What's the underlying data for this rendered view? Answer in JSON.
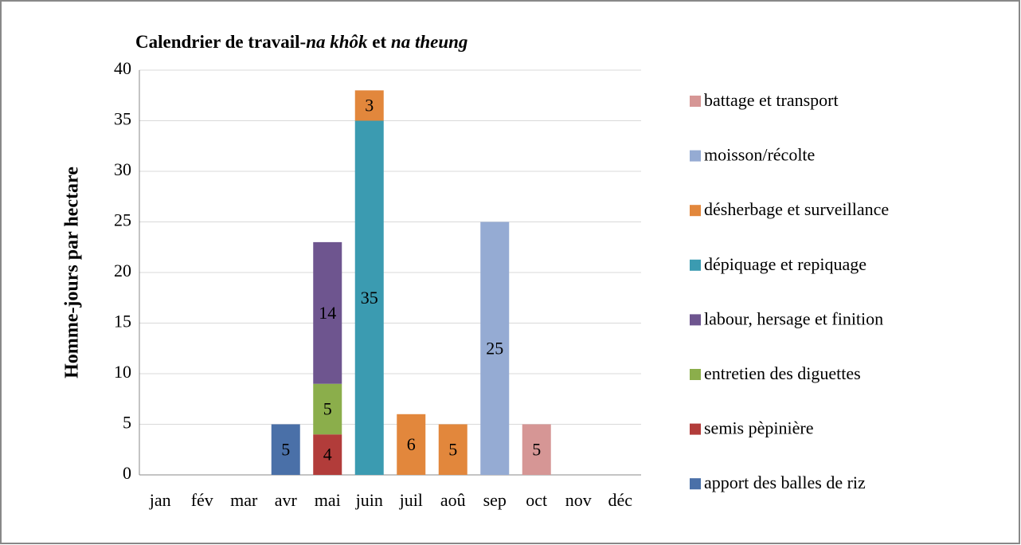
{
  "chart_data": {
    "type": "bar",
    "stacked": true,
    "title": [
      "Calendrier de travail-",
      "na khôk",
      " et ",
      "na theung"
    ],
    "ylabel": "Homme-jours par hectare",
    "categories": [
      "jan",
      "fév",
      "mar",
      "avr",
      "mai",
      "juin",
      "juil",
      "aoû",
      "sep",
      "oct",
      "nov",
      "déc"
    ],
    "series": [
      {
        "name": "apport des balles de riz",
        "color": "#4a70a8",
        "values": [
          null,
          null,
          null,
          5,
          null,
          null,
          null,
          null,
          null,
          null,
          null,
          null
        ]
      },
      {
        "name": "semis pèpinière",
        "color": "#b23c3a",
        "values": [
          null,
          null,
          null,
          null,
          4,
          null,
          null,
          null,
          null,
          null,
          null,
          null
        ]
      },
      {
        "name": "entretien des diguettes",
        "color": "#8bae4b",
        "values": [
          null,
          null,
          null,
          null,
          5,
          null,
          null,
          null,
          null,
          null,
          null,
          null
        ]
      },
      {
        "name": "labour, hersage et finition",
        "color": "#6e558f",
        "values": [
          null,
          null,
          null,
          null,
          14,
          null,
          null,
          null,
          null,
          null,
          null,
          null
        ]
      },
      {
        "name": "dépiquage et repiquage",
        "color": "#3b9bb1",
        "values": [
          null,
          null,
          null,
          null,
          null,
          35,
          null,
          null,
          null,
          null,
          null,
          null
        ]
      },
      {
        "name": "désherbage et surveillance",
        "color": "#e2873c",
        "values": [
          null,
          null,
          null,
          null,
          null,
          3,
          6,
          5,
          null,
          null,
          null,
          null
        ]
      },
      {
        "name": "moisson/récolte",
        "color": "#95abd3",
        "values": [
          null,
          null,
          null,
          null,
          null,
          null,
          null,
          null,
          25,
          null,
          null,
          null
        ]
      },
      {
        "name": "battage et transport",
        "color": "#d69695",
        "values": [
          null,
          null,
          null,
          null,
          null,
          null,
          null,
          null,
          null,
          5,
          null,
          null
        ]
      }
    ],
    "ylim": [
      0,
      40
    ],
    "yticks": [
      0,
      5,
      10,
      15,
      20,
      25,
      30,
      35,
      40
    ],
    "grid": true,
    "legend": "right"
  }
}
